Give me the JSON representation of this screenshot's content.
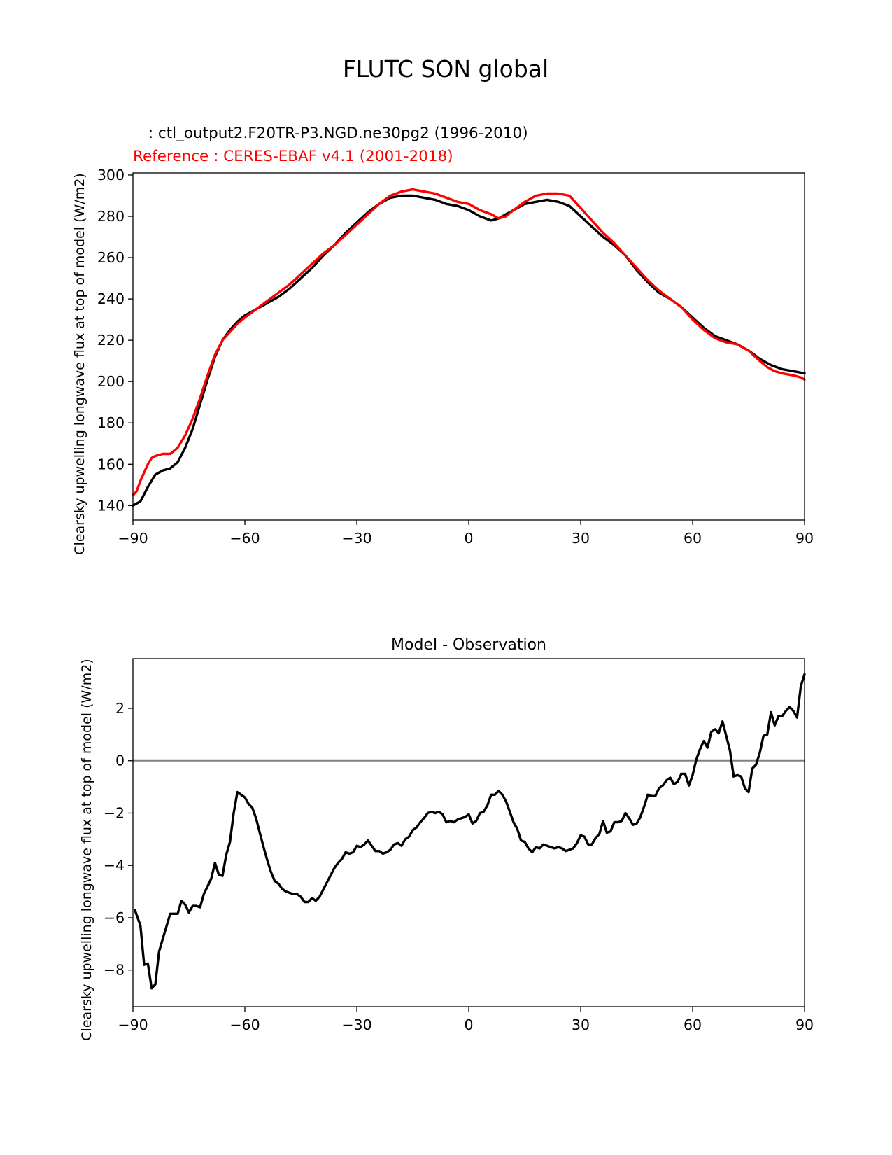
{
  "figure": {
    "suptitle": "FLUTC SON global"
  },
  "chart_data": [
    {
      "type": "line",
      "test_label": " : ctl_output2.F20TR-P3.NGD.ne30pg2 (1996-2010)",
      "ref_label": "Reference : CERES-EBAF v4.1 (2001-2018)",
      "xlabel": "",
      "ylabel": "Clearsky upwelling longwave flux at top of model (W/m2)",
      "xlim": [
        -90,
        90
      ],
      "ylim": [
        133,
        301
      ],
      "xticks": [
        -90,
        -60,
        -30,
        0,
        30,
        60,
        90
      ],
      "xtick_labels": [
        "−90",
        "−60",
        "−30",
        "0",
        "30",
        "60",
        "90"
      ],
      "yticks": [
        140,
        160,
        180,
        200,
        220,
        240,
        260,
        280,
        300
      ],
      "ytick_labels": [
        "140",
        "160",
        "180",
        "200",
        "220",
        "240",
        "260",
        "280",
        "300"
      ],
      "series": [
        {
          "name": "ctl_output2.F20TR-P3.NGD.ne30pg2",
          "color": "#000000",
          "x": [
            -90,
            -88,
            -86,
            -84,
            -82,
            -80,
            -78,
            -76,
            -74,
            -72,
            -70,
            -68,
            -66,
            -64,
            -62,
            -60,
            -57,
            -54,
            -51,
            -48,
            -45,
            -42,
            -39,
            -36,
            -33,
            -30,
            -27,
            -24,
            -21,
            -18,
            -15,
            -12,
            -9,
            -6,
            -3,
            0,
            3,
            6,
            8,
            10,
            12,
            15,
            18,
            21,
            24,
            27,
            30,
            33,
            36,
            39,
            42,
            45,
            48,
            51,
            54,
            57,
            60,
            63,
            66,
            69,
            72,
            75,
            78,
            81,
            84,
            87,
            90
          ],
          "values": [
            140,
            142,
            149,
            155,
            157,
            158,
            161,
            168,
            177,
            189,
            201,
            212,
            220,
            225,
            229,
            232,
            235,
            238,
            241,
            245,
            250,
            255,
            261,
            266,
            272,
            277,
            282,
            286,
            289,
            290,
            290,
            289,
            288,
            286,
            285,
            283,
            280,
            278,
            279,
            281,
            283,
            286,
            287,
            288,
            287,
            285,
            280,
            275,
            270,
            266,
            261,
            254,
            248,
            243,
            240,
            236,
            231,
            226,
            222,
            220,
            218,
            215,
            211,
            208,
            206,
            205,
            204
          ]
        },
        {
          "name": "Reference : CERES-EBAF v4.1 (2001-2018)",
          "color": "#ff0000",
          "x": [
            -90,
            -89,
            -88,
            -87,
            -86,
            -85,
            -84,
            -82,
            -80,
            -78,
            -76,
            -74,
            -72,
            -70,
            -68,
            -66,
            -64,
            -62,
            -60,
            -57,
            -54,
            -51,
            -48,
            -45,
            -42,
            -39,
            -36,
            -33,
            -30,
            -27,
            -24,
            -21,
            -18,
            -15,
            -12,
            -9,
            -6,
            -3,
            0,
            3,
            6,
            8,
            10,
            12,
            15,
            18,
            21,
            24,
            27,
            30,
            33,
            36,
            39,
            42,
            45,
            48,
            51,
            54,
            57,
            60,
            63,
            66,
            69,
            72,
            75,
            78,
            80,
            82,
            84,
            87,
            89,
            90
          ],
          "values": [
            145,
            147,
            152,
            156,
            160,
            163,
            164,
            165,
            165,
            168,
            174,
            182,
            192,
            203,
            213,
            220,
            224,
            228,
            231,
            235,
            239,
            243,
            247,
            252,
            257,
            262,
            266,
            271,
            276,
            281,
            286,
            290,
            292,
            293,
            292,
            291,
            289,
            287,
            286,
            283,
            281,
            279,
            280,
            283,
            287,
            290,
            291,
            291,
            290,
            284,
            278,
            272,
            267,
            261,
            255,
            249,
            244,
            240,
            236,
            230,
            225,
            221,
            219,
            218,
            215,
            210,
            207,
            205,
            204,
            203,
            202,
            201
          ]
        }
      ]
    },
    {
      "type": "line",
      "title": "Model - Observation",
      "xlabel": "",
      "ylabel": "Clearsky upwelling longwave flux at top of model (W/m2)",
      "xlim": [
        -90,
        90
      ],
      "ylim": [
        -9.4,
        3.9
      ],
      "xticks": [
        -90,
        -60,
        -30,
        0,
        30,
        60,
        90
      ],
      "xtick_labels": [
        "−90",
        "−60",
        "−30",
        "0",
        "30",
        "60",
        "90"
      ],
      "yticks": [
        -8,
        -6,
        -4,
        -2,
        0,
        2
      ],
      "ytick_labels": [
        "−8",
        "−6",
        "−4",
        "−2",
        "0",
        "2"
      ],
      "zero_line_color": "#808080",
      "series": [
        {
          "name": "Model - Observation",
          "color": "#000000",
          "x": [
            -89.5,
            -88,
            -87,
            -86,
            -85,
            -84,
            -83,
            -82,
            -80,
            -79,
            -78,
            -77,
            -76,
            -75,
            -74,
            -73,
            -72,
            -71,
            -70,
            -69,
            -68,
            -67,
            -66,
            -65,
            -64,
            -63,
            -62,
            -61,
            -60,
            -59,
            -58,
            -57,
            -56,
            -55,
            -54,
            -53,
            -52,
            -51,
            -50,
            -49,
            -48,
            -47,
            -46,
            -45,
            -44,
            -43,
            -42,
            -41,
            -40,
            -38,
            -36,
            -35,
            -34,
            -33,
            -32,
            -31,
            -30,
            -29,
            -28,
            -27,
            -26,
            -25,
            -24,
            -23,
            -22,
            -21,
            -20,
            -19,
            -18,
            -17,
            -16,
            -15,
            -14,
            -13,
            -12,
            -11,
            -10,
            -9,
            -8,
            -7,
            -6,
            -5,
            -4,
            -3,
            -2,
            -1,
            0,
            1,
            2,
            3,
            4,
            5,
            6,
            7,
            8,
            9,
            10,
            11,
            12,
            13,
            14,
            15,
            16,
            17,
            18,
            19,
            20,
            21,
            22,
            23,
            24,
            25,
            26,
            27,
            28,
            29,
            30,
            31,
            32,
            33,
            34,
            35,
            36,
            37,
            38,
            39,
            40,
            41,
            42,
            43,
            44,
            45,
            46,
            47,
            48,
            49,
            50,
            51,
            52,
            53,
            54,
            55,
            56,
            57,
            58,
            59,
            60,
            61,
            62,
            63,
            64,
            65,
            66,
            67,
            68,
            69,
            70,
            71,
            72,
            73,
            74,
            75,
            76,
            77,
            78,
            79,
            80,
            81,
            82,
            83,
            84,
            85,
            86,
            87,
            88,
            89,
            90
          ],
          "values": [
            -5.7,
            -6.3,
            -7.8,
            -7.75,
            -8.7,
            -8.55,
            -7.3,
            -6.8,
            -5.85,
            -5.85,
            -5.85,
            -5.35,
            -5.5,
            -5.8,
            -5.55,
            -5.55,
            -5.6,
            -5.1,
            -4.8,
            -4.5,
            -3.9,
            -4.35,
            -4.4,
            -3.6,
            -3.1,
            -2.0,
            -1.2,
            -1.3,
            -1.4,
            -1.65,
            -1.8,
            -2.2,
            -2.75,
            -3.3,
            -3.8,
            -4.25,
            -4.6,
            -4.7,
            -4.9,
            -5.0,
            -5.05,
            -5.1,
            -5.1,
            -5.2,
            -5.4,
            -5.4,
            -5.25,
            -5.35,
            -5.2,
            -4.65,
            -4.1,
            -3.9,
            -3.75,
            -3.5,
            -3.55,
            -3.5,
            -3.25,
            -3.3,
            -3.2,
            -3.05,
            -3.25,
            -3.45,
            -3.45,
            -3.55,
            -3.5,
            -3.4,
            -3.2,
            -3.15,
            -3.25,
            -3.0,
            -2.9,
            -2.65,
            -2.55,
            -2.35,
            -2.2,
            -2.0,
            -1.95,
            -2.0,
            -1.95,
            -2.05,
            -2.35,
            -2.3,
            -2.35,
            -2.25,
            -2.2,
            -2.15,
            -2.05,
            -2.4,
            -2.3,
            -2.0,
            -1.95,
            -1.7,
            -1.3,
            -1.3,
            -1.15,
            -1.3,
            -1.55,
            -1.95,
            -2.35,
            -2.6,
            -3.05,
            -3.1,
            -3.35,
            -3.5,
            -3.3,
            -3.35,
            -3.2,
            -3.25,
            -3.3,
            -3.35,
            -3.3,
            -3.35,
            -3.45,
            -3.4,
            -3.35,
            -3.15,
            -2.85,
            -2.9,
            -3.2,
            -3.2,
            -2.95,
            -2.8,
            -2.3,
            -2.75,
            -2.7,
            -2.35,
            -2.35,
            -2.3,
            -2.0,
            -2.2,
            -2.45,
            -2.4,
            -2.15,
            -1.75,
            -1.3,
            -1.35,
            -1.35,
            -1.05,
            -0.95,
            -0.75,
            -0.65,
            -0.9,
            -0.8,
            -0.5,
            -0.5,
            -0.95,
            -0.55,
            0.05,
            0.45,
            0.75,
            0.5,
            1.1,
            1.2,
            1.05,
            1.5,
            0.95,
            0.4,
            -0.6,
            -0.55,
            -0.6,
            -1.05,
            -1.2,
            -0.3,
            -0.15,
            0.3,
            0.95,
            1.0,
            1.85,
            1.35,
            1.7,
            1.7,
            1.9,
            2.05,
            1.9,
            1.65,
            2.85,
            3.3
          ]
        }
      ]
    }
  ]
}
